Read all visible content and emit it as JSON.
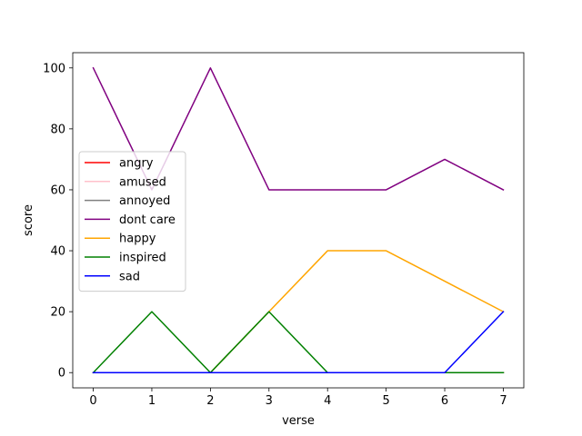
{
  "chart_data": {
    "type": "line",
    "title": "",
    "xlabel": "verse",
    "ylabel": "score",
    "x": [
      0,
      1,
      2,
      3,
      4,
      5,
      6,
      7
    ],
    "xlim": [
      -0.35,
      7.35
    ],
    "ylim": [
      -5,
      105
    ],
    "xticks": [
      0,
      1,
      2,
      3,
      4,
      5,
      6,
      7
    ],
    "yticks": [
      0,
      20,
      40,
      60,
      80,
      100
    ],
    "grid": false,
    "legend_position": "center-left",
    "series": [
      {
        "name": "angry",
        "color": "#ff0000",
        "values": [
          0,
          0,
          0,
          0,
          0,
          0,
          0,
          0
        ]
      },
      {
        "name": "amused",
        "color": "#ffc0cb",
        "values": [
          0,
          0,
          0,
          0,
          0,
          0,
          0,
          0
        ]
      },
      {
        "name": "annoyed",
        "color": "#808080",
        "values": [
          0,
          0,
          0,
          0,
          0,
          0,
          0,
          0
        ]
      },
      {
        "name": "dont care",
        "color": "#800080",
        "values": [
          100,
          60,
          100,
          60,
          60,
          60,
          70,
          60
        ]
      },
      {
        "name": "happy",
        "color": "#ffa500",
        "values": [
          0,
          0,
          0,
          20,
          40,
          40,
          30,
          20
        ]
      },
      {
        "name": "inspired",
        "color": "#008000",
        "values": [
          0,
          20,
          0,
          20,
          0,
          0,
          0,
          0
        ]
      },
      {
        "name": "sad",
        "color": "#0000ff",
        "values": [
          0,
          0,
          0,
          0,
          0,
          0,
          0,
          20
        ]
      }
    ]
  }
}
